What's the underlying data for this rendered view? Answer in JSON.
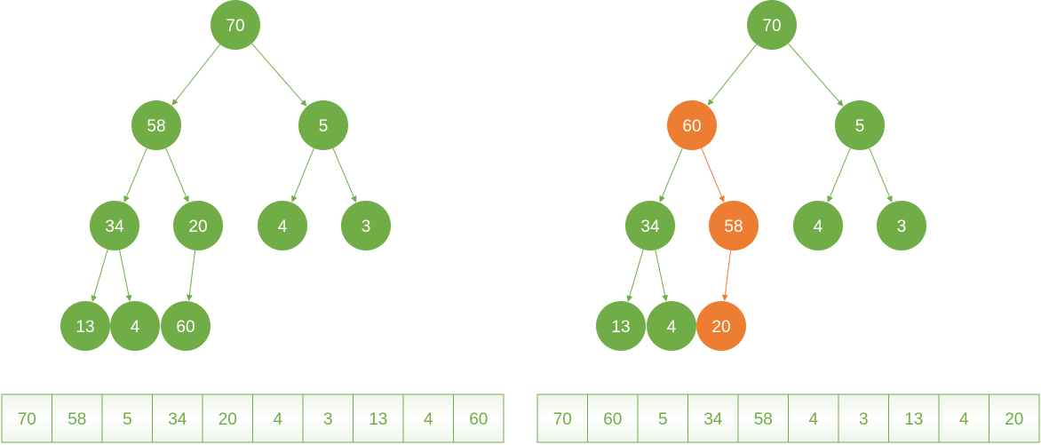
{
  "colors": {
    "node_default": "#70ad47",
    "node_swapped": "#ed7d31",
    "edge_default": "#70ad47",
    "edge_swapped": "#ed7d31",
    "cell_text": "#70ad47",
    "cell_border": "#70ad47"
  },
  "before": {
    "tree": {
      "nodes": [
        {
          "value": "70",
          "state": "default"
        },
        {
          "value": "58",
          "state": "default"
        },
        {
          "value": "5",
          "state": "default"
        },
        {
          "value": "34",
          "state": "default"
        },
        {
          "value": "20",
          "state": "default"
        },
        {
          "value": "4",
          "state": "default"
        },
        {
          "value": "3",
          "state": "default"
        },
        {
          "value": "13",
          "state": "default"
        },
        {
          "value": "4",
          "state": "default"
        },
        {
          "value": "60",
          "state": "default"
        }
      ],
      "edges": [
        {
          "from": 0,
          "to": 1,
          "state": "default"
        },
        {
          "from": 0,
          "to": 2,
          "state": "default"
        },
        {
          "from": 1,
          "to": 3,
          "state": "default"
        },
        {
          "from": 1,
          "to": 4,
          "state": "default"
        },
        {
          "from": 2,
          "to": 5,
          "state": "default"
        },
        {
          "from": 2,
          "to": 6,
          "state": "default"
        },
        {
          "from": 3,
          "to": 7,
          "state": "default"
        },
        {
          "from": 3,
          "to": 8,
          "state": "default"
        },
        {
          "from": 4,
          "to": 9,
          "state": "default"
        }
      ]
    },
    "array": [
      "70",
      "58",
      "5",
      "34",
      "20",
      "4",
      "3",
      "13",
      "4",
      "60"
    ]
  },
  "after": {
    "tree": {
      "nodes": [
        {
          "value": "70",
          "state": "default"
        },
        {
          "value": "60",
          "state": "swapped"
        },
        {
          "value": "5",
          "state": "default"
        },
        {
          "value": "34",
          "state": "default"
        },
        {
          "value": "58",
          "state": "swapped"
        },
        {
          "value": "4",
          "state": "default"
        },
        {
          "value": "3",
          "state": "default"
        },
        {
          "value": "13",
          "state": "default"
        },
        {
          "value": "4",
          "state": "default"
        },
        {
          "value": "20",
          "state": "swapped"
        }
      ],
      "edges": [
        {
          "from": 0,
          "to": 1,
          "state": "default"
        },
        {
          "from": 0,
          "to": 2,
          "state": "default"
        },
        {
          "from": 1,
          "to": 3,
          "state": "default"
        },
        {
          "from": 1,
          "to": 4,
          "state": "swapped"
        },
        {
          "from": 2,
          "to": 5,
          "state": "default"
        },
        {
          "from": 2,
          "to": 6,
          "state": "default"
        },
        {
          "from": 3,
          "to": 7,
          "state": "default"
        },
        {
          "from": 3,
          "to": 8,
          "state": "default"
        },
        {
          "from": 4,
          "to": 9,
          "state": "swapped"
        }
      ]
    },
    "array": [
      "70",
      "60",
      "5",
      "34",
      "58",
      "4",
      "3",
      "13",
      "4",
      "20"
    ]
  }
}
